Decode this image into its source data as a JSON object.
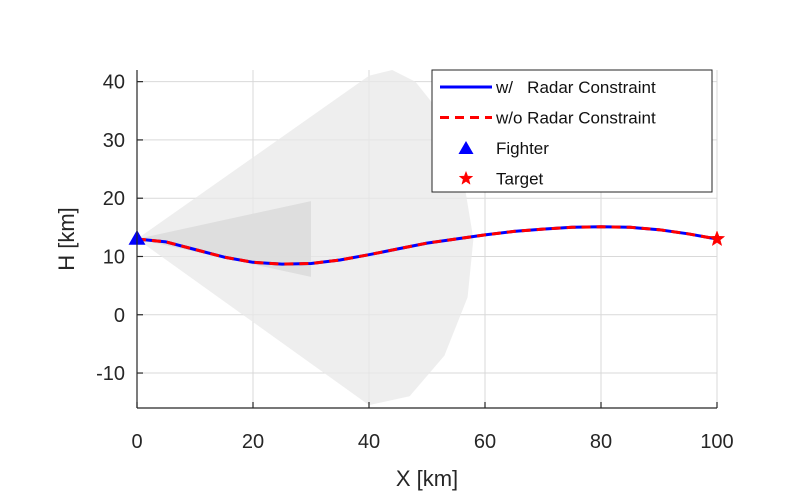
{
  "chart_data": {
    "type": "line",
    "title": "",
    "xlabel": "X [km]",
    "ylabel": "H [km]",
    "xlim": [
      0,
      100
    ],
    "ylim": [
      -16,
      42
    ],
    "xticks": [
      0,
      20,
      40,
      60,
      80,
      100
    ],
    "yticks": [
      -10,
      0,
      10,
      20,
      30,
      40
    ],
    "grid": true,
    "legend_position": "top-right",
    "series": [
      {
        "name": "w/   Radar Constraint",
        "color": "#0000ff",
        "style": "solid",
        "x": [
          0,
          5,
          10,
          15,
          20,
          25,
          30,
          35,
          40,
          45,
          50,
          55,
          60,
          65,
          70,
          75,
          80,
          85,
          90,
          95,
          100
        ],
        "y": [
          13,
          12.5,
          11.2,
          9.9,
          9.0,
          8.7,
          8.8,
          9.4,
          10.3,
          11.3,
          12.3,
          13.0,
          13.7,
          14.3,
          14.7,
          15.0,
          15.1,
          15.0,
          14.6,
          13.9,
          13.0
        ]
      },
      {
        "name": "w/o Radar Constraint",
        "color": "#ff0000",
        "style": "dashed",
        "x": [
          0,
          5,
          10,
          15,
          20,
          25,
          30,
          35,
          40,
          45,
          50,
          55,
          60,
          65,
          70,
          75,
          80,
          85,
          90,
          95,
          100
        ],
        "y": [
          13,
          12.5,
          11.2,
          9.9,
          9.0,
          8.7,
          8.8,
          9.4,
          10.3,
          11.3,
          12.3,
          13.0,
          13.7,
          14.3,
          14.7,
          15.0,
          15.1,
          15.0,
          14.6,
          13.9,
          13.0
        ]
      },
      {
        "name": "Fighter",
        "color": "#0000ff",
        "marker": "triangle",
        "x": [
          0
        ],
        "y": [
          13
        ]
      },
      {
        "name": "Target",
        "color": "#ff0000",
        "marker": "star",
        "x": [
          100
        ],
        "y": [
          13
        ]
      }
    ],
    "regions": [
      {
        "kind": "radar-cone-outer",
        "color": "#e8e8e8",
        "apex": [
          0,
          13
        ],
        "polygon": [
          [
            0,
            13
          ],
          [
            40,
            41
          ],
          [
            44,
            42
          ],
          [
            48,
            40
          ],
          [
            52,
            35
          ],
          [
            56,
            25
          ],
          [
            58,
            13
          ],
          [
            57,
            3
          ],
          [
            53,
            -7
          ],
          [
            47,
            -14
          ],
          [
            40,
            -15.5
          ],
          [
            0,
            13
          ]
        ]
      },
      {
        "kind": "radar-cone-inner",
        "color": "#dcdcdc",
        "apex": [
          0,
          13
        ],
        "polygon": [
          [
            0,
            13
          ],
          [
            30,
            19.5
          ],
          [
            30,
            6.5
          ],
          [
            0,
            13
          ]
        ]
      }
    ]
  }
}
